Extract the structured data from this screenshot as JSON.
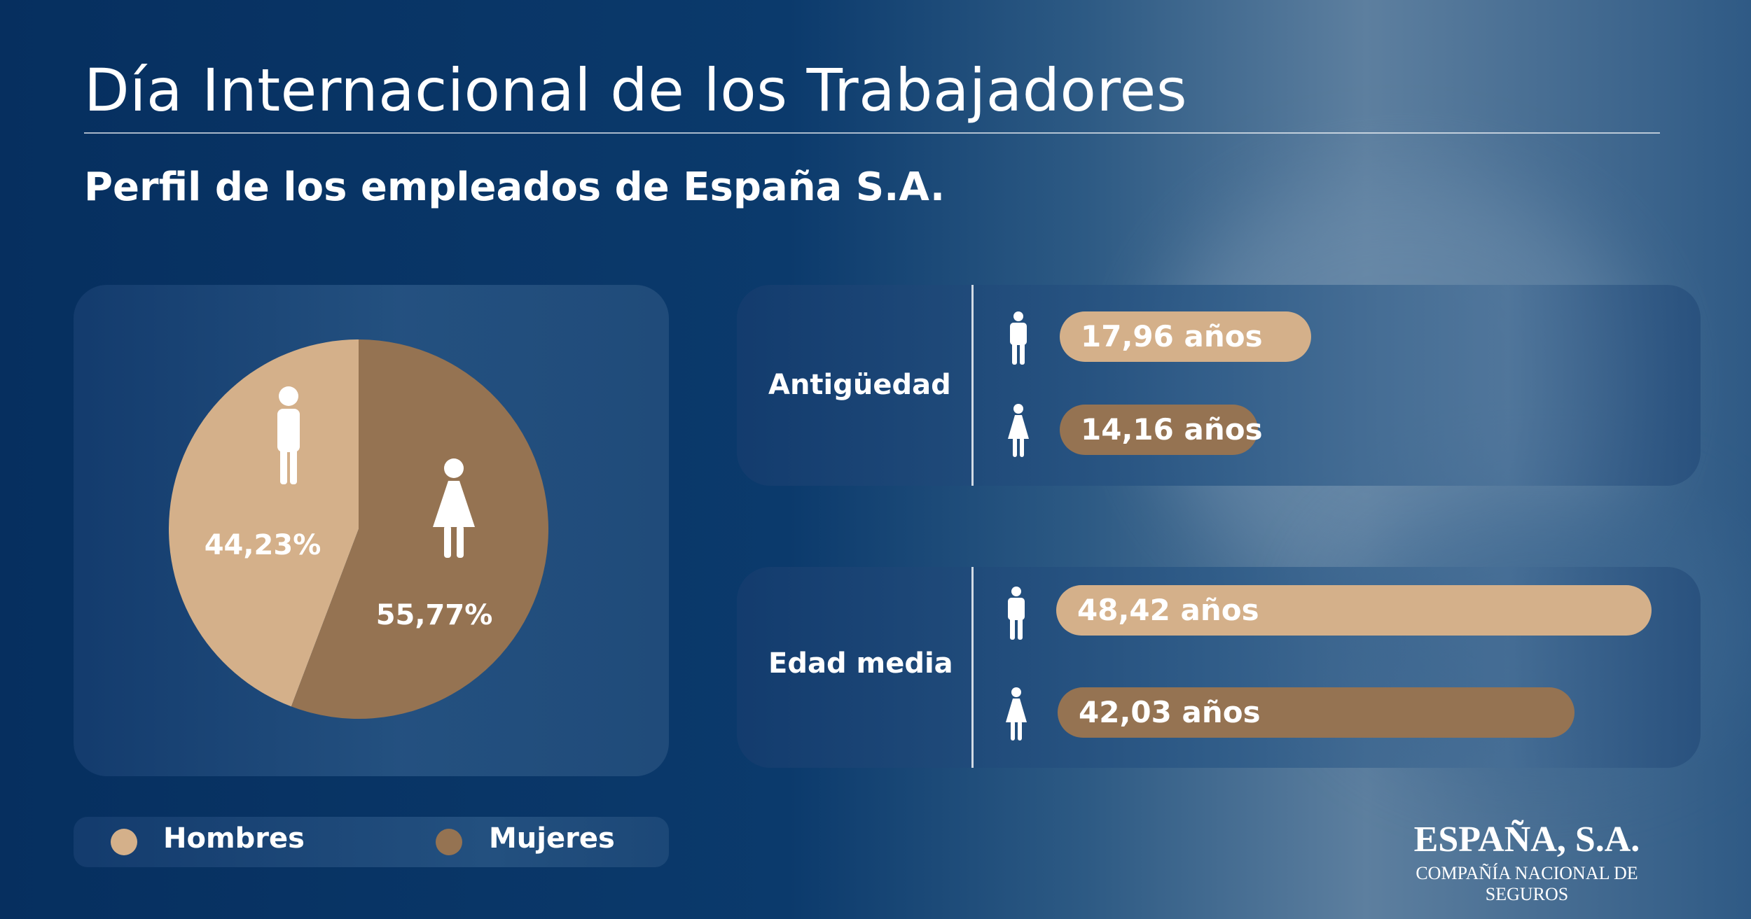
{
  "header": {
    "title": "Día Internacional de los Trabajadores",
    "subtitle": "Perfil de los empleados de España S.A."
  },
  "colors": {
    "hombres": "#d4b08a",
    "mujeres": "#957352",
    "background": "#0b3a6c"
  },
  "chart_data": [
    {
      "type": "pie",
      "categories": [
        "Hombres",
        "Mujeres"
      ],
      "values": [
        44.23,
        55.77
      ],
      "labels": [
        "44,23%",
        "55,77%"
      ],
      "icons": [
        "man-icon",
        "woman-icon"
      ],
      "legend": [
        "Hombres",
        "Mujeres"
      ],
      "legend_position": "bottom"
    },
    {
      "type": "bar",
      "title": "Antigüedad",
      "categories": [
        "Hombres",
        "Mujeres"
      ],
      "values": [
        17.96,
        14.16
      ],
      "labels": [
        "17,96 años",
        "14,16 años"
      ],
      "unit": "años"
    },
    {
      "type": "bar",
      "title": "Edad media",
      "categories": [
        "Hombres",
        "Mujeres"
      ],
      "values": [
        48.42,
        42.03
      ],
      "labels": [
        "48,42 años",
        "42,03 años"
      ],
      "unit": "años"
    }
  ],
  "brand": {
    "name": "ESPAÑA, S.A.",
    "tagline": "COMPAÑÍA NACIONAL DE SEGUROS"
  }
}
